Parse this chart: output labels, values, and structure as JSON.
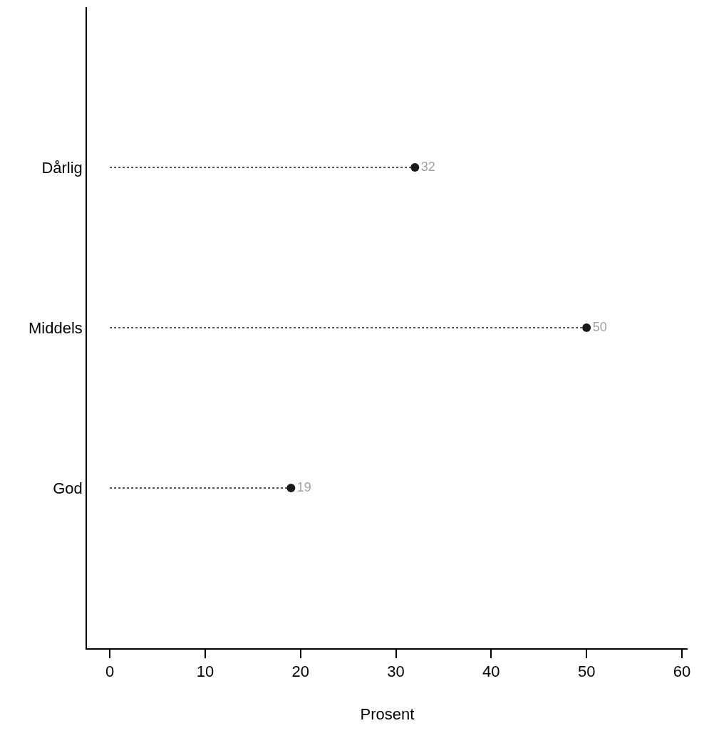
{
  "chart_data": {
    "type": "lollipop",
    "orientation": "horizontal",
    "categories": [
      "Dårlig",
      "Middels",
      "God"
    ],
    "values": [
      32,
      50,
      19
    ],
    "color": "#1a1a1a",
    "xlim": [
      -2.4,
      60.6
    ],
    "xticks": [
      0,
      10,
      20,
      30,
      40,
      50,
      60
    ],
    "xlabel": "Prosent",
    "data_labels": true,
    "line_style": "dotted",
    "marker": "circle",
    "grid": false
  }
}
